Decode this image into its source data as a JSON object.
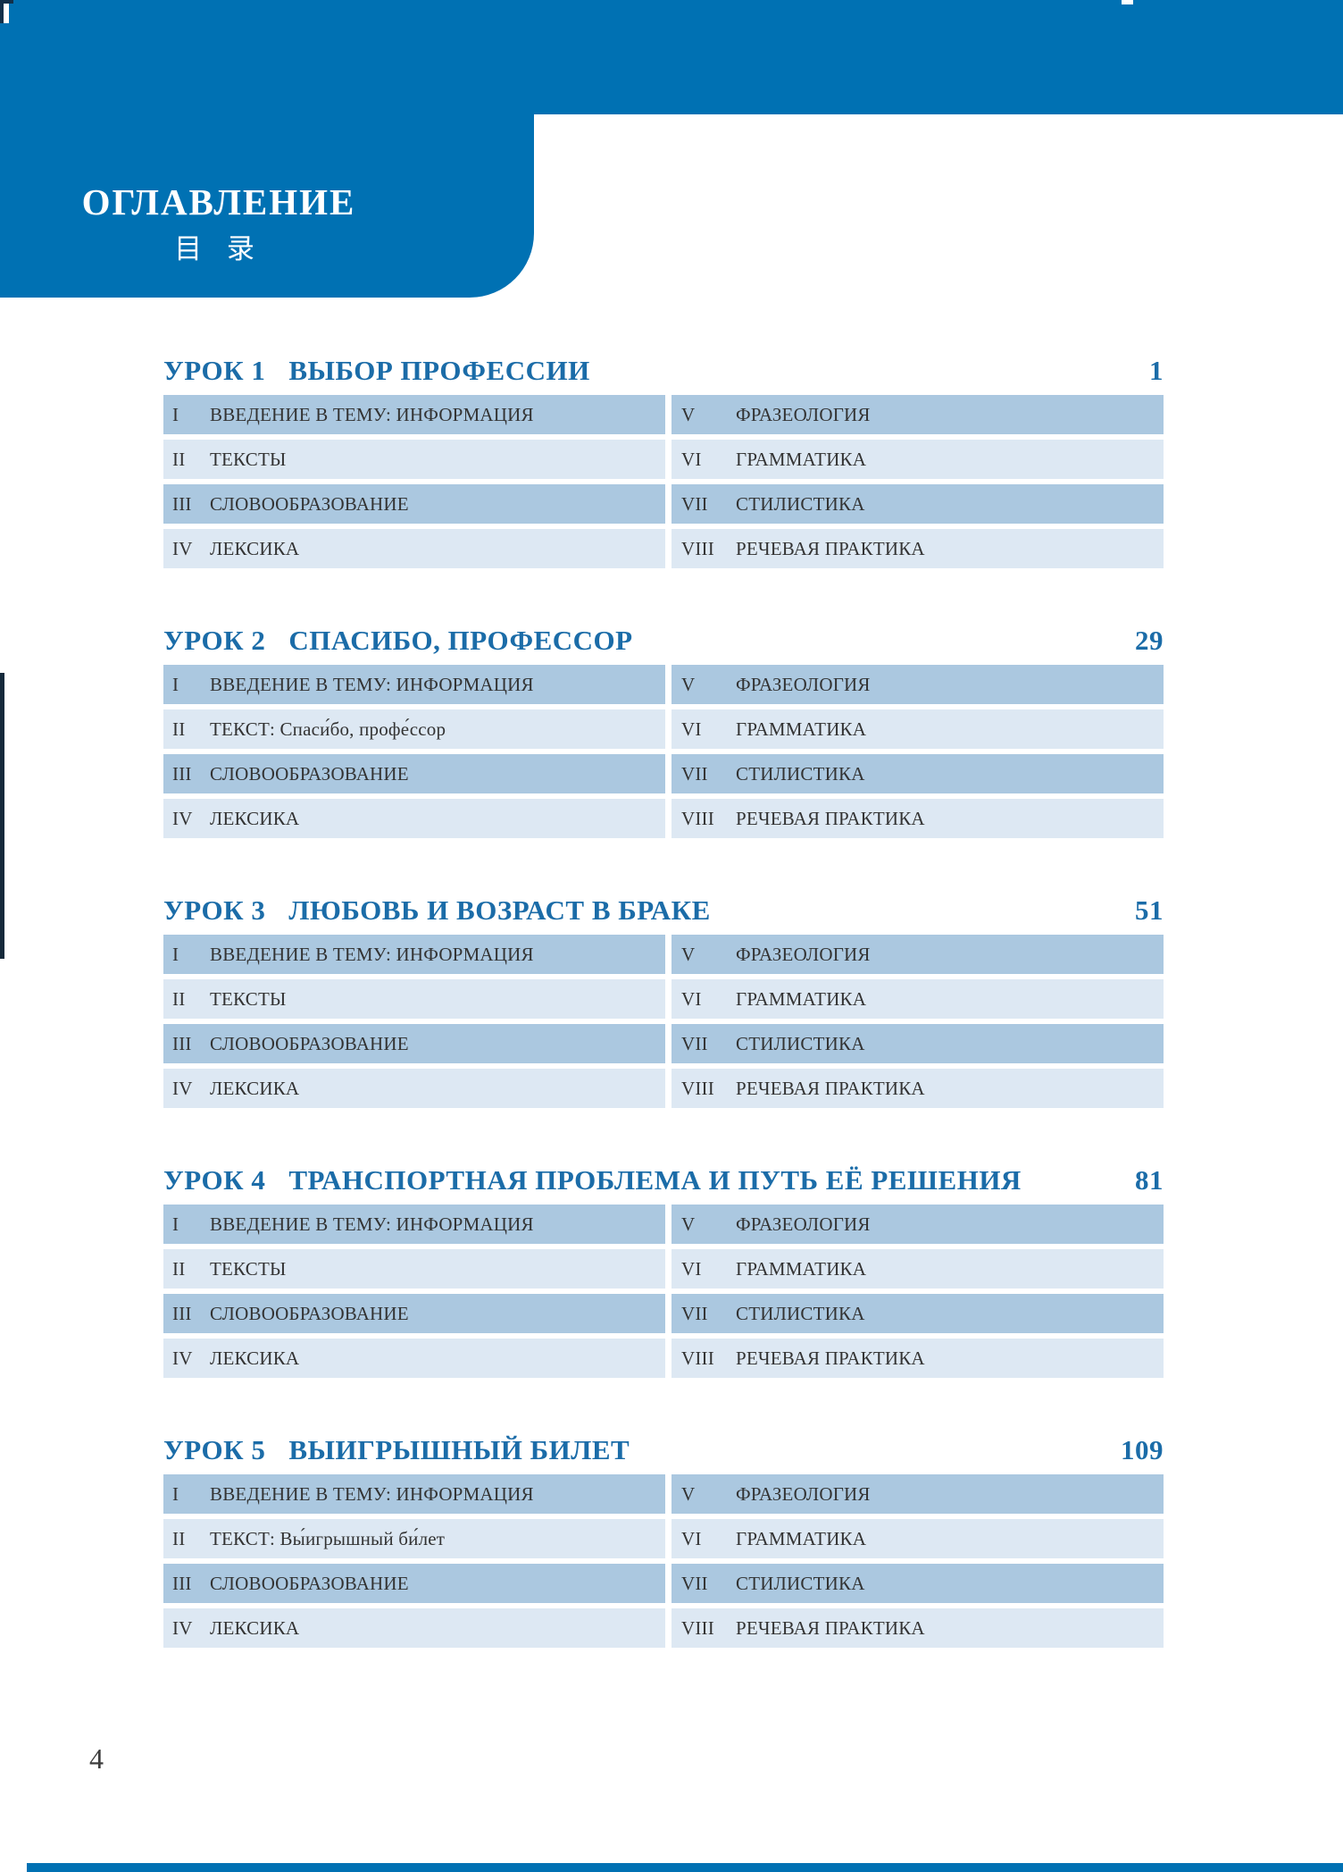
{
  "header": {
    "title_ru": "ОГЛАВЛЕНИЕ",
    "title_zh": "目 录"
  },
  "colors": {
    "header_blue": "#0071b3",
    "lesson_title_blue": "#1b6ca8",
    "row_dark": "#abc8e0",
    "row_light": "#dde8f3",
    "body_text": "#333333"
  },
  "footer": {
    "page_number": "4"
  },
  "lessons": [
    {
      "number": "УРОК 1",
      "title": "ВЫБОР ПРОФЕССИИ",
      "page": "1",
      "rows": [
        {
          "left_numeral": "I",
          "left_text": "ВВЕДЕНИЕ В ТЕМУ: ИНФОРМАЦИЯ",
          "right_numeral": "V",
          "right_text": "ФРАЗЕОЛОГИЯ"
        },
        {
          "left_numeral": "II",
          "left_text": "ТЕКСТЫ",
          "right_numeral": "VI",
          "right_text": "ГРАММАТИКА"
        },
        {
          "left_numeral": "III",
          "left_text": "СЛОВООБРАЗОВАНИЕ",
          "right_numeral": "VII",
          "right_text": "СТИЛИСТИКА"
        },
        {
          "left_numeral": "IV",
          "left_text": "ЛЕКСИКА",
          "right_numeral": "VIII",
          "right_text": "РЕЧЕВАЯ ПРАКТИКА"
        }
      ]
    },
    {
      "number": "УРОК 2",
      "title": "СПАСИБО, ПРОФЕССОР",
      "page": "29",
      "rows": [
        {
          "left_numeral": "I",
          "left_text": "ВВЕДЕНИЕ В ТЕМУ: ИНФОРМАЦИЯ",
          "right_numeral": "V",
          "right_text": "ФРАЗЕОЛОГИЯ"
        },
        {
          "left_numeral": "II",
          "left_text": "ТЕКСТ: Спаси́бо, профе́ссор",
          "right_numeral": "VI",
          "right_text": "ГРАММАТИКА"
        },
        {
          "left_numeral": "III",
          "left_text": "СЛОВООБРАЗОВАНИЕ",
          "right_numeral": "VII",
          "right_text": "СТИЛИСТИКА"
        },
        {
          "left_numeral": "IV",
          "left_text": "ЛЕКСИКА",
          "right_numeral": "VIII",
          "right_text": "РЕЧЕВАЯ ПРАКТИКА"
        }
      ]
    },
    {
      "number": "УРОК 3",
      "title": "ЛЮБОВЬ И ВОЗРАСТ В БРАКЕ",
      "page": "51",
      "rows": [
        {
          "left_numeral": "I",
          "left_text": "ВВЕДЕНИЕ В ТЕМУ: ИНФОРМАЦИЯ",
          "right_numeral": "V",
          "right_text": "ФРАЗЕОЛОГИЯ"
        },
        {
          "left_numeral": "II",
          "left_text": "ТЕКСТЫ",
          "right_numeral": "VI",
          "right_text": "ГРАММАТИКА"
        },
        {
          "left_numeral": "III",
          "left_text": "СЛОВООБРАЗОВАНИЕ",
          "right_numeral": "VII",
          "right_text": "СТИЛИСТИКА"
        },
        {
          "left_numeral": "IV",
          "left_text": "ЛЕКСИКА",
          "right_numeral": "VIII",
          "right_text": "РЕЧЕВАЯ ПРАКТИКА"
        }
      ]
    },
    {
      "number": "УРОК 4",
      "title": "ТРАНСПОРТНАЯ ПРОБЛЕМА И ПУТЬ ЕЁ РЕШЕНИЯ",
      "page": "81",
      "rows": [
        {
          "left_numeral": "I",
          "left_text": "ВВЕДЕНИЕ В ТЕМУ: ИНФОРМАЦИЯ",
          "right_numeral": "V",
          "right_text": "ФРАЗЕОЛОГИЯ"
        },
        {
          "left_numeral": "II",
          "left_text": "ТЕКСТЫ",
          "right_numeral": "VI",
          "right_text": "ГРАММАТИКА"
        },
        {
          "left_numeral": "III",
          "left_text": "СЛОВООБРАЗОВАНИЕ",
          "right_numeral": "VII",
          "right_text": "СТИЛИСТИКА"
        },
        {
          "left_numeral": "IV",
          "left_text": "ЛЕКСИКА",
          "right_numeral": "VIII",
          "right_text": "РЕЧЕВАЯ ПРАКТИКА"
        }
      ]
    },
    {
      "number": "УРОК 5",
      "title": "ВЫИГРЫШНЫЙ БИЛЕТ",
      "page": "109",
      "rows": [
        {
          "left_numeral": "I",
          "left_text": "ВВЕДЕНИЕ В ТЕМУ: ИНФОРМАЦИЯ",
          "right_numeral": "V",
          "right_text": "ФРАЗЕОЛОГИЯ"
        },
        {
          "left_numeral": "II",
          "left_text": "ТЕКСТ: Вы́игрышный би́лет",
          "right_numeral": "VI",
          "right_text": "ГРАММАТИКА"
        },
        {
          "left_numeral": "III",
          "left_text": "СЛОВООБРАЗОВАНИЕ",
          "right_numeral": "VII",
          "right_text": "СТИЛИСТИКА"
        },
        {
          "left_numeral": "IV",
          "left_text": "ЛЕКСИКА",
          "right_numeral": "VIII",
          "right_text": "РЕЧЕВАЯ ПРАКТИКА"
        }
      ]
    }
  ]
}
